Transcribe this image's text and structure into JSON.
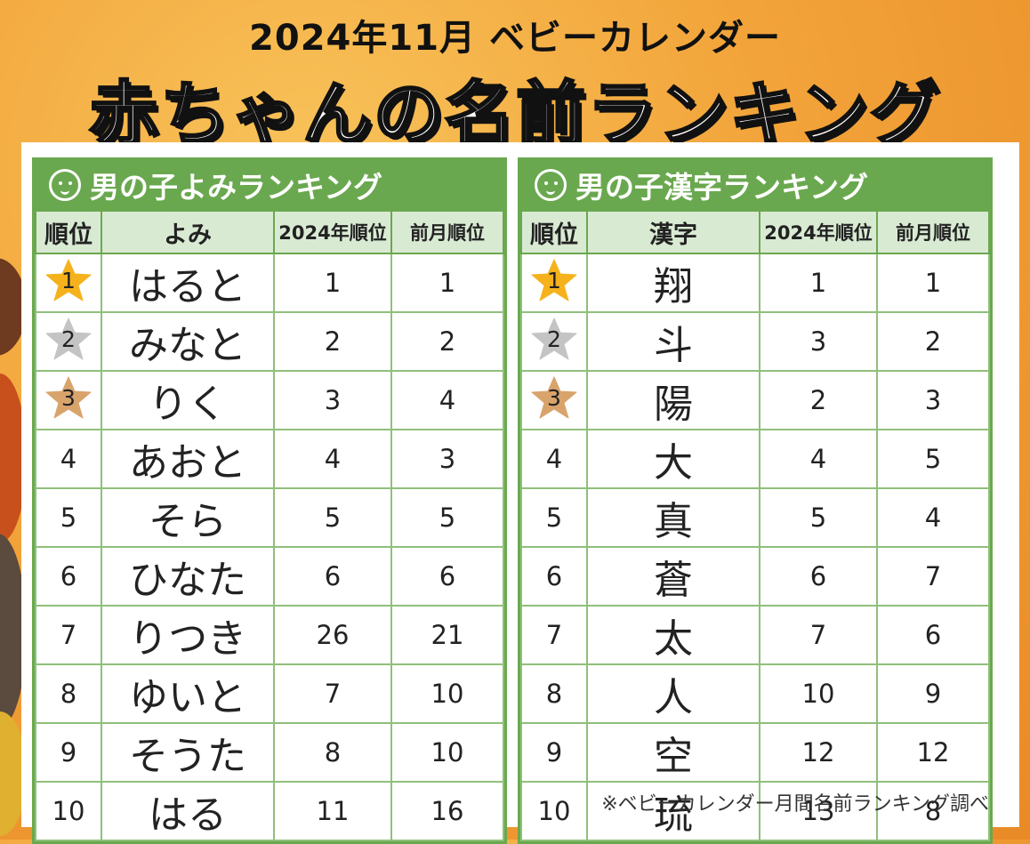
{
  "title_line1": "2024年11月 ベビーカレンダー",
  "title_line2": "赤ちゃんの名前ランキング",
  "colors": {
    "accent": "#6aa84f",
    "header_fill": "#d9ead3",
    "gold": "#f5b21d",
    "silver": "#c4c4c4",
    "bronze": "#d9a36c"
  },
  "left_table": {
    "heading": "男の子よみランキング",
    "icon": "face-icon",
    "columns": [
      "順位",
      "よみ",
      "2024年順位",
      "前月順位"
    ],
    "rows": [
      {
        "rank": "1",
        "name": "はると",
        "year": "1",
        "prev": "1"
      },
      {
        "rank": "2",
        "name": "みなと",
        "year": "2",
        "prev": "2"
      },
      {
        "rank": "3",
        "name": "りく",
        "year": "3",
        "prev": "4"
      },
      {
        "rank": "4",
        "name": "あおと",
        "year": "4",
        "prev": "3"
      },
      {
        "rank": "5",
        "name": "そら",
        "year": "5",
        "prev": "5"
      },
      {
        "rank": "6",
        "name": "ひなた",
        "year": "6",
        "prev": "6"
      },
      {
        "rank": "7",
        "name": "りつき",
        "year": "26",
        "prev": "21"
      },
      {
        "rank": "8",
        "name": "ゆいと",
        "year": "7",
        "prev": "10"
      },
      {
        "rank": "9",
        "name": "そうた",
        "year": "8",
        "prev": "10"
      },
      {
        "rank": "10",
        "name": "はる",
        "year": "11",
        "prev": "16"
      }
    ]
  },
  "right_table": {
    "heading": "男の子漢字ランキング",
    "icon": "face-icon",
    "columns": [
      "順位",
      "漢字",
      "2024年順位",
      "前月順位"
    ],
    "rows": [
      {
        "rank": "1",
        "name": "翔",
        "year": "1",
        "prev": "1"
      },
      {
        "rank": "2",
        "name": "斗",
        "year": "3",
        "prev": "2"
      },
      {
        "rank": "3",
        "name": "陽",
        "year": "2",
        "prev": "3"
      },
      {
        "rank": "4",
        "name": "大",
        "year": "4",
        "prev": "5"
      },
      {
        "rank": "5",
        "name": "真",
        "year": "5",
        "prev": "4"
      },
      {
        "rank": "6",
        "name": "蒼",
        "year": "6",
        "prev": "7"
      },
      {
        "rank": "7",
        "name": "太",
        "year": "7",
        "prev": "6"
      },
      {
        "rank": "8",
        "name": "人",
        "year": "10",
        "prev": "9"
      },
      {
        "rank": "9",
        "name": "空",
        "year": "12",
        "prev": "12"
      },
      {
        "rank": "10",
        "name": "琉",
        "year": "13",
        "prev": "8"
      }
    ]
  },
  "footnote": "※ベビーカレンダー月間名前ランキング調べ"
}
